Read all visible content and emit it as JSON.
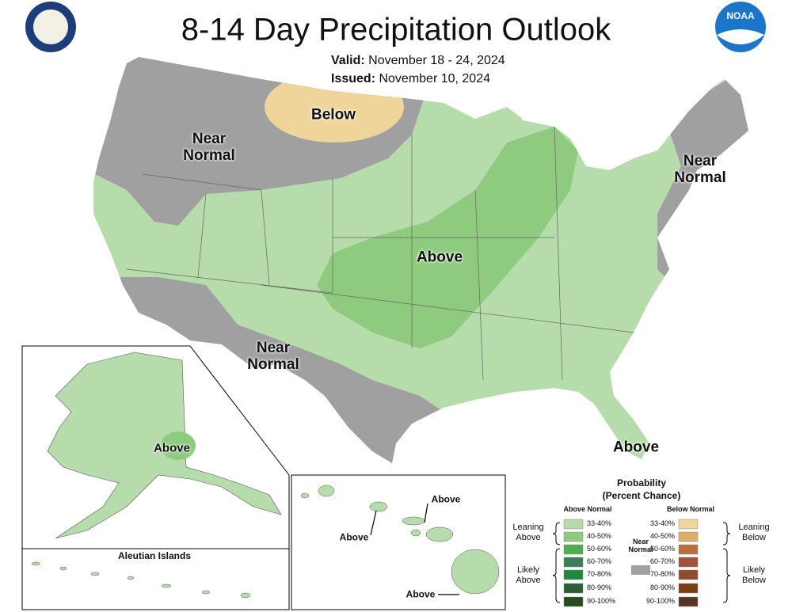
{
  "header": {
    "title": "8-14 Day Precipitation Outlook",
    "valid_label": "Valid:",
    "valid_dates": "November 18 - 24, 2024",
    "issued_label": "Issued:",
    "issued_date": "November 10, 2024",
    "noaa_logo": "NOAA"
  },
  "map_labels": {
    "northwest": "Near Normal",
    "north": "Below",
    "northeast": "Near Normal",
    "southwest": "Near Normal",
    "central": "Above",
    "florida": "Above",
    "alaska": "Above",
    "hawaii_east": "Above",
    "hawaii_west": "Above",
    "hawaii_south": "Above",
    "aleutian_islands": "Aleutian Islands"
  },
  "legend": {
    "title": "Probability",
    "subtitle": "(Percent Chance)",
    "above": {
      "heading": "Above Normal",
      "leaning": "Leaning Above",
      "likely": "Likely Above",
      "items": [
        {
          "label": "33-40%",
          "color": "#b5dcaa"
        },
        {
          "label": "40-50%",
          "color": "#8ecb7e"
        },
        {
          "label": "50-60%",
          "color": "#4fae4a"
        },
        {
          "label": "60-70%",
          "color": "#3a7d5a"
        },
        {
          "label": "70-80%",
          "color": "#1f8a3f"
        },
        {
          "label": "80-90%",
          "color": "#285f35"
        },
        {
          "label": "90-100%",
          "color": "#254d1e"
        }
      ]
    },
    "below": {
      "heading": "Below Normal",
      "leaning": "Leaning Below",
      "likely": "Likely Below",
      "items": [
        {
          "label": "33-40%",
          "color": "#f0d59a"
        },
        {
          "label": "40-50%",
          "color": "#ddae6a"
        },
        {
          "label": "50-60%",
          "color": "#b8703c"
        },
        {
          "label": "60-70%",
          "color": "#a3513a"
        },
        {
          "label": "70-80%",
          "color": "#8f4b2c"
        },
        {
          "label": "80-90%",
          "color": "#7b3e10"
        },
        {
          "label": "90-100%",
          "color": "#5a3328"
        }
      ]
    },
    "near_normal": {
      "label": "Near Normal",
      "color": "#a0a0a0"
    }
  }
}
